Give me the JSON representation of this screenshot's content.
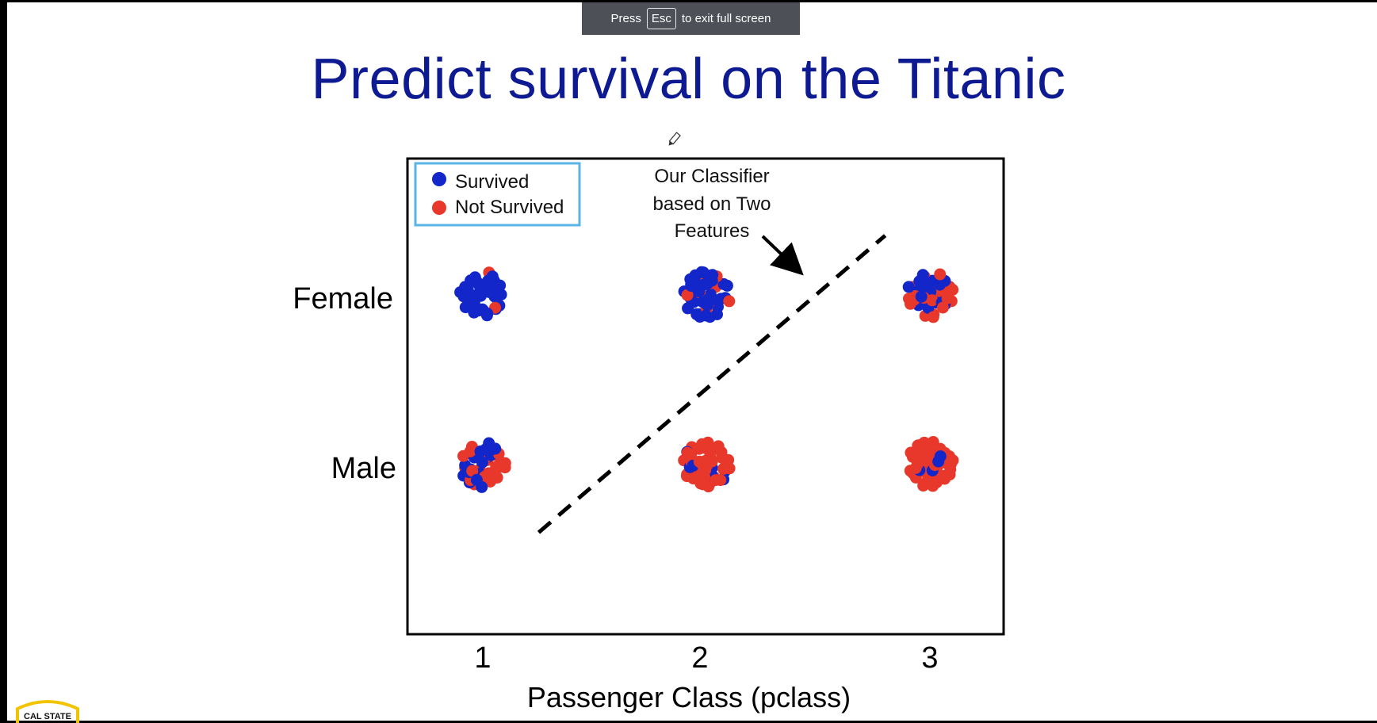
{
  "banner": {
    "press": "Press",
    "key": "Esc",
    "suffix": "to exit full screen"
  },
  "slide": {
    "title": "Predict survival on the Titanic",
    "logo_text": "CAL STATE"
  },
  "colors": {
    "survived": "#1326c9",
    "not_survived": "#e8372b",
    "title": "#0e1a92",
    "legend_border": "#5ab4e6"
  },
  "chart_data": {
    "type": "scatter",
    "title": "",
    "xlabel": "Passenger Class (pclass)",
    "ylabel": "",
    "x_categories": [
      "1",
      "2",
      "3"
    ],
    "y_categories": [
      "Male",
      "Female"
    ],
    "legend": {
      "position": "top-left",
      "entries": [
        {
          "label": "Survived",
          "series": "survived"
        },
        {
          "label": "Not Survived",
          "series": "not_survived"
        }
      ]
    },
    "grid": false,
    "annotation": {
      "text_lines": [
        "Our Classifier",
        "based on Two",
        "Features"
      ]
    },
    "decision_line": {
      "style": "dashed",
      "from": {
        "x": 1.25,
        "y": -0.4
      },
      "to": {
        "x": 2.8,
        "y": 1.35
      }
    },
    "clusters": [
      {
        "x": "1",
        "y": "Female",
        "survived": 45,
        "not_survived": 3
      },
      {
        "x": "2",
        "y": "Female",
        "survived": 40,
        "not_survived": 12
      },
      {
        "x": "3",
        "y": "Female",
        "survived": 25,
        "not_survived": 25
      },
      {
        "x": "1",
        "y": "Male",
        "survived": 22,
        "not_survived": 25
      },
      {
        "x": "2",
        "y": "Male",
        "survived": 8,
        "not_survived": 45
      },
      {
        "x": "3",
        "y": "Male",
        "survived": 5,
        "not_survived": 55
      }
    ]
  }
}
